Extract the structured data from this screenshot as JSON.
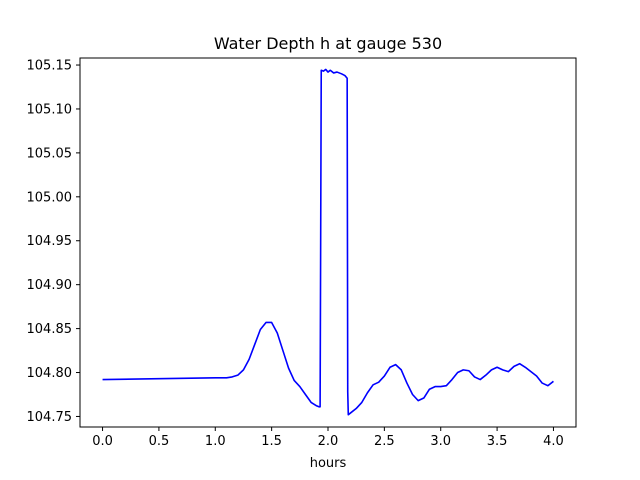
{
  "chart_data": {
    "type": "line",
    "title": "Water Depth h at gauge 530",
    "xlabel": "hours",
    "ylabel": "",
    "xlim": [
      -0.2,
      4.2
    ],
    "ylim": [
      104.738,
      105.158
    ],
    "xticks": [
      "0.0",
      "0.5",
      "1.0",
      "1.5",
      "2.0",
      "2.5",
      "3.0",
      "3.5",
      "4.0"
    ],
    "yticks": [
      "104.75",
      "104.80",
      "104.85",
      "104.90",
      "104.95",
      "105.00",
      "105.05",
      "105.10",
      "105.15"
    ],
    "grid": false,
    "series": [
      {
        "color": "#0000ff",
        "x": [
          0.0,
          0.5,
          1.0,
          1.1,
          1.15,
          1.2,
          1.25,
          1.3,
          1.35,
          1.4,
          1.45,
          1.5,
          1.55,
          1.6,
          1.65,
          1.7,
          1.75,
          1.8,
          1.85,
          1.9,
          1.92,
          1.93,
          1.94,
          1.96,
          1.98,
          2.0,
          2.02,
          2.05,
          2.08,
          2.12,
          2.15,
          2.17,
          2.175,
          2.18,
          2.2,
          2.25,
          2.3,
          2.35,
          2.4,
          2.45,
          2.5,
          2.55,
          2.6,
          2.65,
          2.7,
          2.75,
          2.8,
          2.85,
          2.9,
          2.95,
          3.0,
          3.05,
          3.1,
          3.15,
          3.2,
          3.25,
          3.3,
          3.35,
          3.4,
          3.45,
          3.5,
          3.55,
          3.6,
          3.65,
          3.7,
          3.75,
          3.8,
          3.85,
          3.9,
          3.95,
          4.0
        ],
        "y": [
          104.792,
          104.793,
          104.794,
          104.794,
          104.795,
          104.797,
          104.803,
          104.815,
          104.832,
          104.849,
          104.857,
          104.857,
          104.845,
          104.825,
          104.805,
          104.791,
          104.784,
          104.775,
          104.766,
          104.762,
          104.761,
          104.761,
          105.144,
          105.143,
          105.145,
          105.142,
          105.144,
          105.141,
          105.142,
          105.14,
          105.138,
          105.135,
          104.778,
          104.752,
          104.754,
          104.759,
          104.766,
          104.777,
          104.786,
          104.789,
          104.796,
          104.806,
          104.809,
          104.803,
          104.788,
          104.775,
          104.768,
          104.771,
          104.781,
          104.784,
          104.784,
          104.785,
          104.792,
          104.8,
          104.803,
          104.802,
          104.795,
          104.792,
          104.797,
          104.803,
          104.806,
          104.803,
          104.801,
          104.807,
          104.81,
          104.806,
          104.801,
          104.796,
          104.788,
          104.785,
          104.79
        ]
      }
    ]
  }
}
